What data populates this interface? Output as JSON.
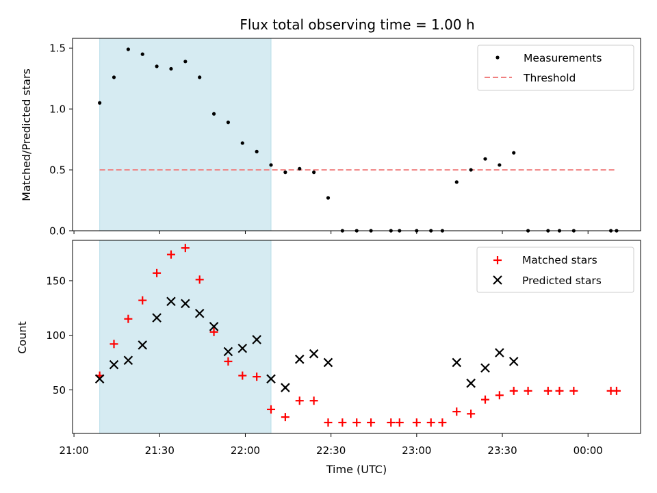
{
  "chart_data": [
    {
      "type": "scatter",
      "title": "Flux total observing time = 1.00 h",
      "xlabel": "",
      "ylabel": "Matched/Predicted stars",
      "ylim": [
        0,
        1.58
      ],
      "yticks": [
        "0.0",
        "0.5",
        "1.0",
        "1.5"
      ],
      "ytick_values": [
        0,
        0.5,
        1.0,
        1.5
      ],
      "highlight_span": [
        "21:09",
        "22:09"
      ],
      "colors": {
        "points": "#000000",
        "threshold": "#f08080",
        "span": "#add8e6"
      },
      "legend_position": "top-right",
      "series": [
        {
          "name": "Measurements",
          "x": [
            "21:09",
            "21:14",
            "21:19",
            "21:24",
            "21:29",
            "21:34",
            "21:39",
            "21:44",
            "21:49",
            "21:54",
            "21:59",
            "22:04",
            "22:09",
            "22:14",
            "22:19",
            "22:24",
            "22:29",
            "22:34",
            "22:39",
            "22:44",
            "22:51",
            "22:54",
            "23:00",
            "23:05",
            "23:09",
            "23:14",
            "23:19",
            "23:24",
            "23:29",
            "23:34",
            "23:39",
            "23:46",
            "23:50",
            "23:55",
            "00:08",
            "00:10"
          ],
          "y": [
            1.05,
            1.26,
            1.49,
            1.45,
            1.35,
            1.33,
            1.39,
            1.26,
            0.96,
            0.89,
            0.72,
            0.65,
            0.54,
            0.48,
            0.51,
            0.48,
            0.27,
            0,
            0,
            0,
            0,
            0,
            0,
            0,
            0,
            0.4,
            0.5,
            0.59,
            0.54,
            0.64,
            0,
            0,
            0,
            0,
            0,
            0
          ]
        },
        {
          "name": "Threshold",
          "x": [
            "21:09",
            "00:10"
          ],
          "y": [
            0.5,
            0.5
          ]
        }
      ]
    },
    {
      "type": "scatter",
      "title": "",
      "xlabel": "Time (UTC)",
      "ylabel": "Count",
      "ylim": [
        10,
        187
      ],
      "yticks": [
        "50",
        "100",
        "150"
      ],
      "ytick_values": [
        50,
        100,
        150
      ],
      "xticks": [
        "21:00",
        "21:30",
        "22:00",
        "22:30",
        "23:00",
        "23:30",
        "00:00"
      ],
      "highlight_span": [
        "21:09",
        "22:09"
      ],
      "colors": {
        "matched": "#ff0000",
        "predicted": "#000000",
        "span": "#add8e6"
      },
      "legend_position": "top-right",
      "series": [
        {
          "name": "Matched stars",
          "x": [
            "21:09",
            "21:14",
            "21:19",
            "21:24",
            "21:29",
            "21:34",
            "21:39",
            "21:44",
            "21:49",
            "21:54",
            "21:59",
            "22:04",
            "22:09",
            "22:14",
            "22:19",
            "22:24",
            "22:29",
            "22:34",
            "22:39",
            "22:44",
            "22:51",
            "22:54",
            "23:00",
            "23:05",
            "23:09",
            "23:14",
            "23:19",
            "23:24",
            "23:29",
            "23:34",
            "23:39",
            "23:46",
            "23:50",
            "23:55",
            "00:08",
            "00:10"
          ],
          "y": [
            63,
            92,
            115,
            132,
            157,
            174,
            180,
            151,
            103,
            76,
            63,
            62,
            32,
            25,
            40,
            40,
            20,
            20,
            20,
            20,
            20,
            20,
            20,
            20,
            20,
            30,
            28,
            41,
            45,
            49,
            49,
            49,
            49,
            49,
            49,
            49
          ]
        },
        {
          "name": "Predicted stars",
          "x": [
            "21:09",
            "21:14",
            "21:19",
            "21:24",
            "21:29",
            "21:34",
            "21:39",
            "21:44",
            "21:49",
            "21:54",
            "21:59",
            "22:04",
            "22:09",
            "22:14",
            "22:19",
            "22:24",
            "22:29",
            "23:14",
            "23:19",
            "23:24",
            "23:29",
            "23:34"
          ],
          "y": [
            60,
            73,
            77,
            91,
            116,
            131,
            129,
            120,
            108,
            85,
            88,
            96,
            60,
            52,
            78,
            83,
            75,
            75,
            56,
            70,
            84,
            76
          ]
        }
      ]
    }
  ]
}
